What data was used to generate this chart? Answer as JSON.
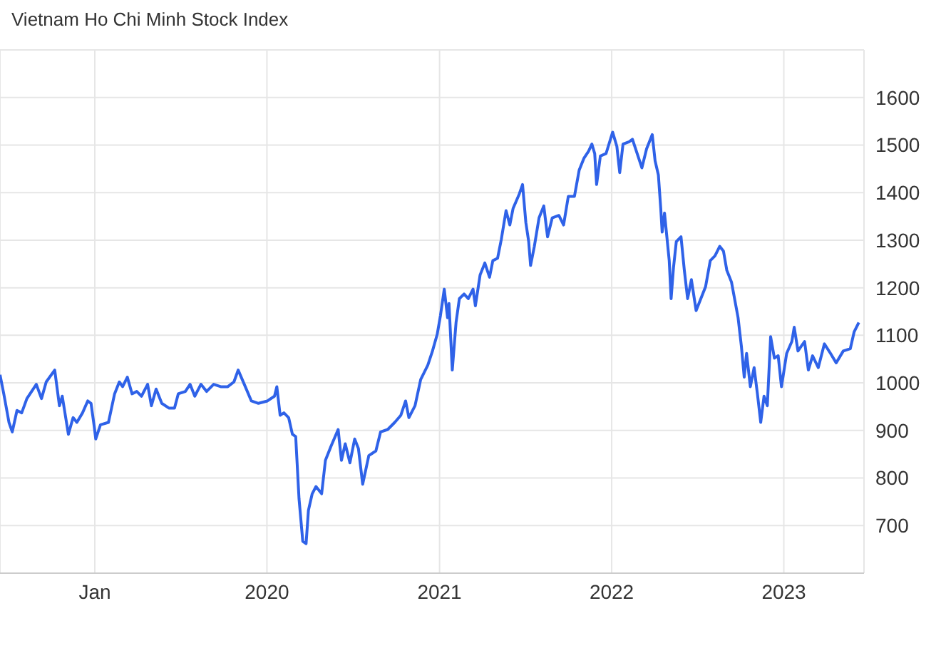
{
  "chart_data": {
    "type": "line",
    "title": "Vietnam Ho Chi Minh Stock Index",
    "xlim": [
      "2018-06-14",
      "2023-06-20"
    ],
    "xticks": [
      {
        "value": "2019-01-01",
        "label": "Jan"
      },
      {
        "value": "2020-01-01",
        "label": "2020"
      },
      {
        "value": "2021-01-01",
        "label": "2021"
      },
      {
        "value": "2022-01-01",
        "label": "2022"
      },
      {
        "value": "2023-01-01",
        "label": "2023"
      }
    ],
    "ylim": [
      600,
      1700
    ],
    "yticks": [
      700,
      800,
      900,
      1000,
      1100,
      1200,
      1300,
      1400,
      1500,
      1600
    ],
    "grid": true,
    "legend": false,
    "marker": "none",
    "line_style": "solid",
    "series": [
      {
        "color": "#2f62e8",
        "x": [
          "2018-06-14",
          "2018-06-22",
          "2018-07-03",
          "2018-07-10",
          "2018-07-20",
          "2018-07-30",
          "2018-08-10",
          "2018-08-30",
          "2018-09-10",
          "2018-09-20",
          "2018-10-08",
          "2018-10-18",
          "2018-10-24",
          "2018-11-06",
          "2018-11-16",
          "2018-11-24",
          "2018-12-06",
          "2018-12-17",
          "2018-12-24",
          "2018-12-31",
          "2019-01-03",
          "2019-01-13",
          "2019-01-30",
          "2019-02-12",
          "2019-02-22",
          "2019-03-01",
          "2019-03-11",
          "2019-03-21",
          "2019-03-31",
          "2019-04-10",
          "2019-04-23",
          "2019-05-01",
          "2019-05-11",
          "2019-05-23",
          "2019-06-07",
          "2019-06-19",
          "2019-06-27",
          "2019-07-12",
          "2019-07-22",
          "2019-08-01",
          "2019-08-14",
          "2019-08-26",
          "2019-09-10",
          "2019-09-25",
          "2019-10-10",
          "2019-10-23",
          "2019-11-01",
          "2019-11-14",
          "2019-11-29",
          "2019-12-14",
          "2020-01-02",
          "2020-01-17",
          "2020-01-22",
          "2020-01-29",
          "2020-02-06",
          "2020-02-16",
          "2020-02-24",
          "2020-03-02",
          "2020-03-09",
          "2020-03-17",
          "2020-03-24",
          "2020-03-29",
          "2020-04-06",
          "2020-04-14",
          "2020-04-26",
          "2020-05-04",
          "2020-05-16",
          "2020-05-31",
          "2020-06-07",
          "2020-06-15",
          "2020-06-25",
          "2020-07-05",
          "2020-07-13",
          "2020-07-22",
          "2020-08-04",
          "2020-08-19",
          "2020-08-29",
          "2020-09-13",
          "2020-09-28",
          "2020-10-11",
          "2020-10-21",
          "2020-10-28",
          "2020-11-10",
          "2020-11-22",
          "2020-12-07",
          "2020-12-17",
          "2020-12-27",
          "2021-01-03",
          "2021-01-11",
          "2021-01-18",
          "2021-01-21",
          "2021-01-28",
          "2021-02-05",
          "2021-02-12",
          "2021-02-22",
          "2021-03-03",
          "2021-03-13",
          "2021-03-18",
          "2021-03-28",
          "2021-04-07",
          "2021-04-17",
          "2021-04-24",
          "2021-05-04",
          "2021-05-12",
          "2021-05-22",
          "2021-05-30",
          "2021-06-06",
          "2021-06-19",
          "2021-06-26",
          "2021-07-03",
          "2021-07-09",
          "2021-07-13",
          "2021-07-21",
          "2021-07-31",
          "2021-08-10",
          "2021-08-18",
          "2021-08-28",
          "2021-09-11",
          "2021-09-21",
          "2021-10-01",
          "2021-10-14",
          "2021-10-24",
          "2021-11-03",
          "2021-11-13",
          "2021-11-20",
          "2021-11-26",
          "2021-11-30",
          "2021-12-08",
          "2021-12-20",
          "2022-01-03",
          "2022-01-12",
          "2022-01-18",
          "2022-01-25",
          "2022-02-07",
          "2022-02-14",
          "2022-02-24",
          "2022-03-06",
          "2022-03-16",
          "2022-03-28",
          "2022-04-03",
          "2022-04-10",
          "2022-04-15",
          "2022-04-18",
          "2022-04-23",
          "2022-04-28",
          "2022-05-03",
          "2022-05-07",
          "2022-05-12",
          "2022-05-18",
          "2022-05-28",
          "2022-06-04",
          "2022-06-11",
          "2022-06-19",
          "2022-06-29",
          "2022-07-09",
          "2022-07-19",
          "2022-07-29",
          "2022-08-08",
          "2022-08-18",
          "2022-08-26",
          "2022-09-02",
          "2022-09-12",
          "2022-09-26",
          "2022-10-03",
          "2022-10-09",
          "2022-10-14",
          "2022-10-22",
          "2022-10-30",
          "2022-11-06",
          "2022-11-13",
          "2022-11-20",
          "2022-11-27",
          "2022-12-04",
          "2022-12-12",
          "2022-12-20",
          "2022-12-27",
          "2023-01-07",
          "2023-01-18",
          "2023-01-23",
          "2023-01-31",
          "2023-02-07",
          "2023-02-14",
          "2023-02-22",
          "2023-03-03",
          "2023-03-15",
          "2023-03-28",
          "2023-04-10",
          "2023-04-22",
          "2023-05-07",
          "2023-05-22",
          "2023-05-30",
          "2023-06-09"
        ],
        "values": [
          1017,
          977,
          917,
          897,
          942,
          937,
          967,
          997,
          967,
          1002,
          1027,
          952,
          972,
          892,
          927,
          917,
          937,
          962,
          957,
          907,
          882,
          912,
          917,
          977,
          1002,
          992,
          1012,
          977,
          982,
          972,
          997,
          952,
          987,
          957,
          947,
          947,
          977,
          982,
          997,
          972,
          997,
          982,
          997,
          992,
          992,
          1002,
          1027,
          997,
          962,
          957,
          962,
          972,
          992,
          932,
          937,
          927,
          892,
          887,
          757,
          667,
          662,
          732,
          767,
          782,
          767,
          837,
          867,
          902,
          837,
          872,
          832,
          882,
          862,
          787,
          847,
          857,
          897,
          902,
          917,
          932,
          962,
          927,
          952,
          1007,
          1037,
          1067,
          1102,
          1142,
          1197,
          1137,
          1167,
          1027,
          1127,
          1177,
          1187,
          1177,
          1197,
          1162,
          1227,
          1252,
          1222,
          1257,
          1262,
          1302,
          1362,
          1332,
          1367,
          1397,
          1417,
          1337,
          1297,
          1247,
          1287,
          1347,
          1372,
          1307,
          1347,
          1352,
          1332,
          1392,
          1392,
          1447,
          1472,
          1487,
          1502,
          1482,
          1417,
          1477,
          1482,
          1527,
          1497,
          1442,
          1502,
          1507,
          1512,
          1482,
          1452,
          1492,
          1522,
          1467,
          1437,
          1367,
          1317,
          1357,
          1307,
          1257,
          1177,
          1242,
          1297,
          1307,
          1237,
          1177,
          1217,
          1152,
          1177,
          1202,
          1257,
          1267,
          1287,
          1277,
          1237,
          1212,
          1137,
          1077,
          1012,
          1062,
          992,
          1032,
          977,
          917,
          972,
          952,
          1097,
          1052,
          1057,
          992,
          1062,
          1087,
          1117,
          1067,
          1077,
          1087,
          1027,
          1057,
          1032,
          1082,
          1062,
          1042,
          1067,
          1072,
          1107,
          1127
        ]
      }
    ]
  }
}
